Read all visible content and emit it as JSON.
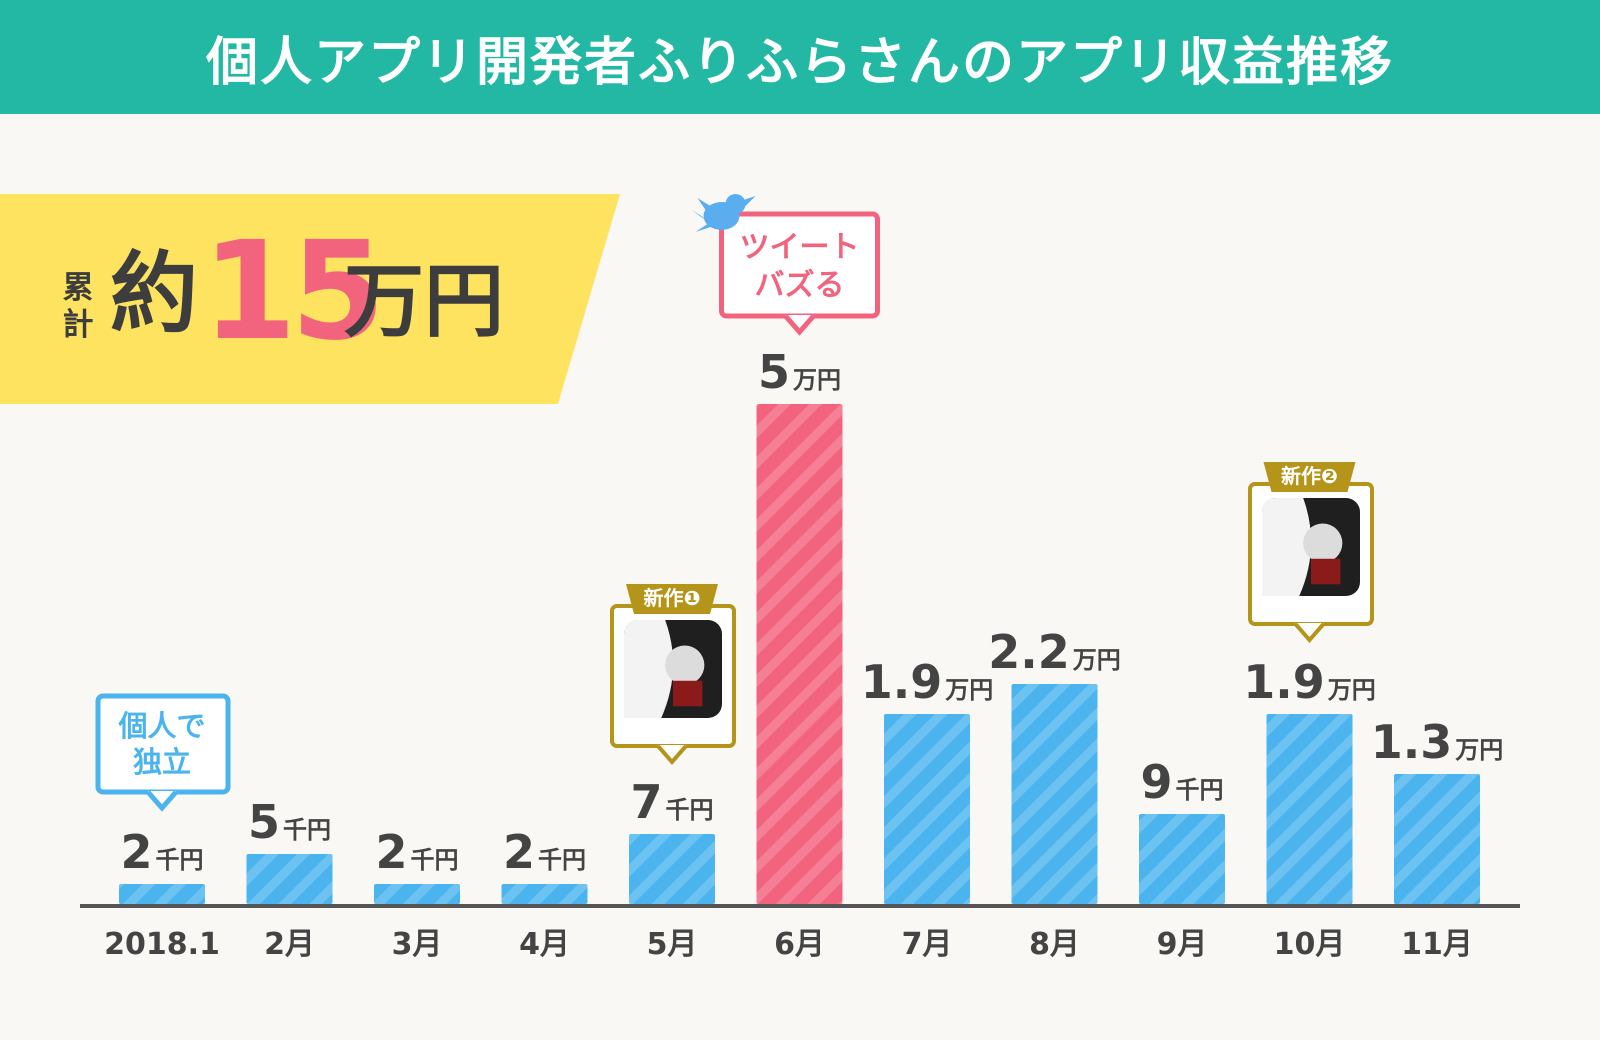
{
  "header": {
    "title": "個人アプリ開発者ふりふらさんのアプリ収益推移"
  },
  "summary": {
    "label": "累\n計",
    "prefix": "約",
    "amount": "15",
    "unit": "万円"
  },
  "callouts": {
    "independent": "個人で\n独立",
    "tweet": "ツイート\nバズる",
    "new_app_1": "新作❶",
    "new_app_2": "新作❷"
  },
  "colors": {
    "header": "#22b8a3",
    "banner": "#fde35f",
    "bar": "#4bb4ee",
    "highlight_bar": "#f2637e",
    "independent_callout": "#4bb4ee",
    "tweet_callout": "#f2637e",
    "new_app_callout": "#b5941a",
    "text": "#444444"
  },
  "icons": {
    "tweet_callout_icon": "twitter-bird-icon",
    "new_app_1_icon": "app-icon",
    "new_app_2_icon": "app-icon"
  },
  "chart_data": {
    "type": "bar",
    "unit": "円",
    "categories": [
      "2018.1",
      "2月",
      "3月",
      "4月",
      "5月",
      "6月",
      "7月",
      "8月",
      "9月",
      "10月",
      "11月"
    ],
    "values": [
      2000,
      5000,
      2000,
      2000,
      7000,
      50000,
      19000,
      22000,
      9000,
      19000,
      13000
    ],
    "data_labels": [
      {
        "number": "2",
        "unit": "千円"
      },
      {
        "number": "5",
        "unit": "千円"
      },
      {
        "number": "2",
        "unit": "千円"
      },
      {
        "number": "2",
        "unit": "千円"
      },
      {
        "number": "7",
        "unit": "千円"
      },
      {
        "number": "5",
        "unit": "万円"
      },
      {
        "number": "1.9",
        "unit": "万円"
      },
      {
        "number": "2.2",
        "unit": "万円"
      },
      {
        "number": "9",
        "unit": "千円"
      },
      {
        "number": "1.9",
        "unit": "万円"
      },
      {
        "number": "1.3",
        "unit": "万円"
      }
    ],
    "highlight_category": "6月",
    "ylim": [
      0,
      50000
    ],
    "xlabel": "",
    "ylabel": "",
    "title": "",
    "grid": false,
    "legend": "none",
    "annotations": [
      {
        "category": "2018.1",
        "text": "個人で\n独立"
      },
      {
        "category": "5月",
        "text": "新作❶"
      },
      {
        "category": "6月",
        "text": "ツイート\nバズる"
      },
      {
        "category": "10月",
        "text": "新作❷"
      }
    ]
  }
}
